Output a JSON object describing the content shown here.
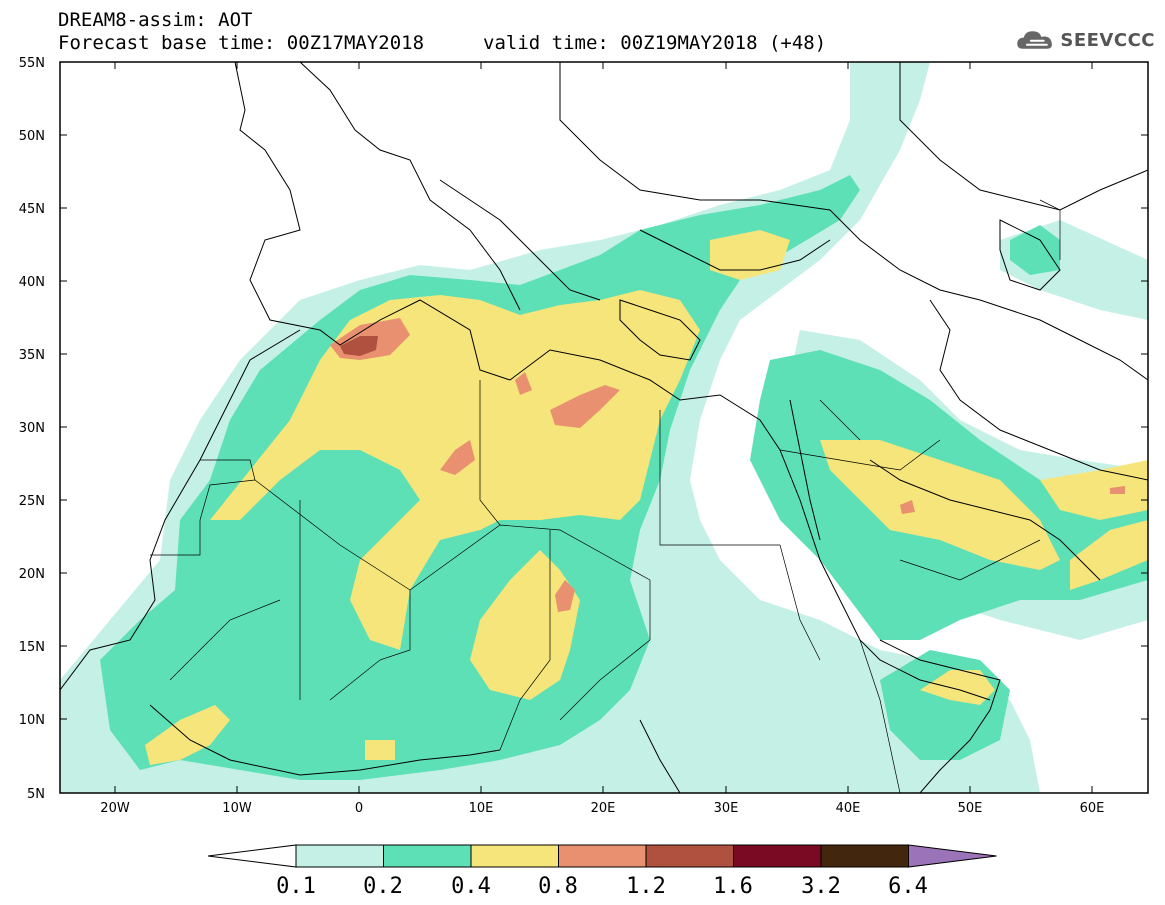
{
  "title": {
    "line1": "DREAM8-assim: AOT",
    "line2": "Forecast base time: 00Z17MAY2018",
    "valid": "valid time: 00Z19MAY2018 (+48)"
  },
  "logo": {
    "text": "SEEVCCC",
    "icon": "cloud-icon"
  },
  "axes": {
    "lon_ticks": [
      "20W",
      "10W",
      "0",
      "10E",
      "20E",
      "30E",
      "40E",
      "50E",
      "60E"
    ],
    "lat_ticks": [
      "55N",
      "50N",
      "45N",
      "40N",
      "35N",
      "30N",
      "25N",
      "20N",
      "15N",
      "10N",
      "5N"
    ]
  },
  "colorbar": {
    "labels": [
      "0.1",
      "0.2",
      "0.4",
      "0.8",
      "1.2",
      "1.6",
      "3.2",
      "6.4"
    ],
    "colors": [
      "#ffffff",
      "#c5f0e6",
      "#5ee0b6",
      "#f5e57a",
      "#e89070",
      "#b0503e",
      "#7a0a24",
      "#43260e",
      "#9a73b8"
    ]
  }
}
